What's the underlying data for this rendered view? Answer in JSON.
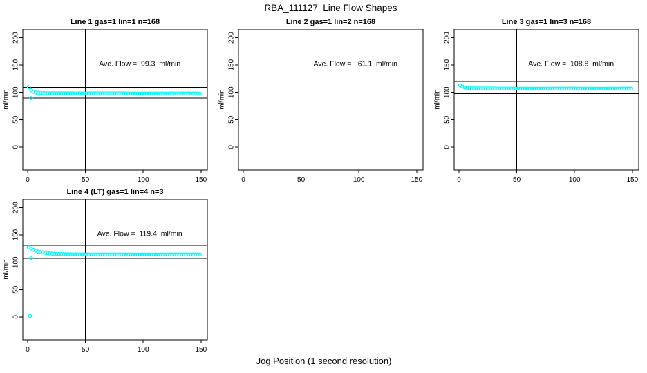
{
  "page": {
    "title": "RBA_111127  Line Flow Shapes",
    "xlabel": "Jog Position (1 second resolution)"
  },
  "chart_data": [
    {
      "type": "scatter",
      "title": "Line 1 gas=1 lin=1 n=168",
      "gas": 1,
      "lin": 1,
      "n": 168,
      "annotation": "Ave. Flow =  99.3  ml/min",
      "ave_flow": 99.3,
      "annotation_xy": [
        97,
        152
      ],
      "ylabel": "ml/min",
      "xlim": [
        -4.2,
        155.5
      ],
      "ylim": [
        -42,
        216
      ],
      "xticks": [
        0,
        50,
        100,
        150
      ],
      "yticks": [
        0,
        50,
        100,
        150,
        200
      ],
      "vline_x": 50,
      "hlines": [
        109.2,
        89.4
      ],
      "marker": "circle-open",
      "marker_color": "#00FFFF",
      "points": [
        [
          1,
          109.5
        ],
        [
          3,
          103.9
        ],
        [
          5,
          101.1
        ],
        [
          7,
          99.8
        ],
        [
          9,
          99.1
        ],
        [
          11,
          98.8
        ],
        [
          13,
          98.6
        ],
        [
          15,
          98.5
        ],
        [
          17,
          98.4
        ],
        [
          19,
          98.4
        ],
        [
          21,
          98.4
        ],
        [
          23,
          98.4
        ],
        [
          25,
          98.4
        ],
        [
          27,
          98.4
        ],
        [
          29,
          98.4
        ],
        [
          31,
          98.4
        ],
        [
          33,
          98.4
        ],
        [
          35,
          98.4
        ],
        [
          37,
          98.4
        ],
        [
          39,
          98.4
        ],
        [
          41,
          98.3
        ],
        [
          43,
          98.3
        ],
        [
          45,
          98.3
        ],
        [
          47,
          98.3
        ],
        [
          49,
          98.3
        ],
        [
          51,
          98.3
        ],
        [
          53,
          98.3
        ],
        [
          55,
          98.3
        ],
        [
          57,
          98.3
        ],
        [
          59,
          98.3
        ],
        [
          61,
          98.3
        ],
        [
          63,
          98.2
        ],
        [
          65,
          98.2
        ],
        [
          67,
          98.2
        ],
        [
          69,
          98.2
        ],
        [
          71,
          98.2
        ],
        [
          73,
          98.2
        ],
        [
          75,
          98.2
        ],
        [
          77,
          98.2
        ],
        [
          79,
          98.2
        ],
        [
          81,
          98.2
        ],
        [
          83,
          98.2
        ],
        [
          85,
          98.2
        ],
        [
          87,
          98.1
        ],
        [
          89,
          98.1
        ],
        [
          91,
          98.1
        ],
        [
          93,
          98.1
        ],
        [
          95,
          98.1
        ],
        [
          97,
          98.1
        ],
        [
          99,
          98.1
        ],
        [
          101,
          98.1
        ],
        [
          103,
          98.1
        ],
        [
          105,
          98.1
        ],
        [
          107,
          98.1
        ],
        [
          109,
          98.1
        ],
        [
          111,
          98.0
        ],
        [
          113,
          98.0
        ],
        [
          115,
          98.0
        ],
        [
          117,
          98.0
        ],
        [
          119,
          98.0
        ],
        [
          121,
          98.0
        ],
        [
          123,
          98.0
        ],
        [
          125,
          98.0
        ],
        [
          127,
          98.0
        ],
        [
          129,
          98.0
        ],
        [
          131,
          98.0
        ],
        [
          133,
          98.0
        ],
        [
          135,
          97.9
        ],
        [
          137,
          97.9
        ],
        [
          139,
          97.9
        ],
        [
          141,
          97.9
        ],
        [
          143,
          97.9
        ],
        [
          145,
          97.9
        ],
        [
          147,
          97.9
        ],
        [
          149,
          97.9
        ],
        [
          3,
          89.4
        ]
      ]
    },
    {
      "type": "scatter",
      "title": "Line 2 gas=1 lin=2 n=168",
      "gas": 1,
      "lin": 2,
      "n": 168,
      "annotation": "Ave. Flow =  -61.1  ml/min",
      "ave_flow": -61.1,
      "annotation_xy": [
        97,
        152
      ],
      "ylabel": "ml/min",
      "xlim": [
        -4.2,
        155.5
      ],
      "ylim": [
        -42,
        216
      ],
      "xticks": [
        0,
        50,
        100,
        150
      ],
      "yticks": [
        0,
        50,
        100,
        150,
        200
      ],
      "vline_x": 50,
      "hlines": [],
      "marker": "circle-open",
      "marker_color": "#00FFFF",
      "points": []
    },
    {
      "type": "scatter",
      "title": "Line 3 gas=1 lin=3 n=168",
      "gas": 1,
      "lin": 3,
      "n": 168,
      "annotation": "Ave. Flow =  108.8  ml/min",
      "ave_flow": 108.8,
      "annotation_xy": [
        97,
        152
      ],
      "ylabel": "ml/min",
      "xlim": [
        -4.2,
        155.5
      ],
      "ylim": [
        -42,
        216
      ],
      "xticks": [
        0,
        50,
        100,
        150
      ],
      "yticks": [
        0,
        50,
        100,
        150,
        200
      ],
      "vline_x": 50,
      "hlines": [
        119.7,
        97.9
      ],
      "marker": "circle-open",
      "marker_color": "#00FFFF",
      "points": [
        [
          1,
          113.2
        ],
        [
          3,
          110.4
        ],
        [
          5,
          108.9
        ],
        [
          7,
          108.1
        ],
        [
          9,
          107.7
        ],
        [
          11,
          107.4
        ],
        [
          13,
          107.3
        ],
        [
          15,
          107.2
        ],
        [
          17,
          107.2
        ],
        [
          19,
          107.1
        ],
        [
          21,
          107.1
        ],
        [
          23,
          107.1
        ],
        [
          25,
          107.1
        ],
        [
          27,
          107.1
        ],
        [
          29,
          107.1
        ],
        [
          31,
          107.0
        ],
        [
          33,
          107.0
        ],
        [
          35,
          107.0
        ],
        [
          37,
          107.0
        ],
        [
          39,
          107.0
        ],
        [
          41,
          107.0
        ],
        [
          43,
          107.0
        ],
        [
          45,
          107.0
        ],
        [
          47,
          107.0
        ],
        [
          49,
          107.0
        ],
        [
          51,
          106.9
        ],
        [
          53,
          106.9
        ],
        [
          55,
          106.9
        ],
        [
          57,
          106.9
        ],
        [
          59,
          106.9
        ],
        [
          61,
          106.9
        ],
        [
          63,
          106.9
        ],
        [
          65,
          106.9
        ],
        [
          67,
          106.9
        ],
        [
          69,
          106.9
        ],
        [
          71,
          106.9
        ],
        [
          73,
          106.9
        ],
        [
          75,
          106.9
        ],
        [
          77,
          106.9
        ],
        [
          79,
          106.9
        ],
        [
          81,
          106.9
        ],
        [
          83,
          106.9
        ],
        [
          85,
          106.9
        ],
        [
          87,
          106.9
        ],
        [
          89,
          106.9
        ],
        [
          91,
          106.9
        ],
        [
          93,
          106.9
        ],
        [
          95,
          106.9
        ],
        [
          97,
          106.9
        ],
        [
          99,
          106.9
        ],
        [
          101,
          106.8
        ],
        [
          103,
          106.8
        ],
        [
          105,
          106.8
        ],
        [
          107,
          106.8
        ],
        [
          109,
          106.8
        ],
        [
          111,
          106.8
        ],
        [
          113,
          106.8
        ],
        [
          115,
          106.8
        ],
        [
          117,
          106.8
        ],
        [
          119,
          106.8
        ],
        [
          121,
          106.8
        ],
        [
          123,
          106.8
        ],
        [
          125,
          106.8
        ],
        [
          127,
          106.8
        ],
        [
          129,
          106.8
        ],
        [
          131,
          106.8
        ],
        [
          133,
          106.8
        ],
        [
          135,
          106.8
        ],
        [
          137,
          106.8
        ],
        [
          139,
          106.8
        ],
        [
          141,
          106.8
        ],
        [
          143,
          106.7
        ],
        [
          145,
          106.7
        ],
        [
          147,
          106.7
        ],
        [
          149,
          106.7
        ]
      ]
    },
    {
      "type": "scatter",
      "title": "Line 4 (LT) gas=1 lin=4 n=3",
      "gas": 1,
      "lin": 4,
      "n": 3,
      "annotation": "Ave. Flow =  119.4  ml/min",
      "ave_flow": 119.4,
      "annotation_xy": [
        97,
        152
      ],
      "ylabel": "ml/min",
      "xlim": [
        -4.2,
        155.5
      ],
      "ylim": [
        -42,
        216
      ],
      "xticks": [
        0,
        50,
        100,
        150
      ],
      "yticks": [
        0,
        50,
        100,
        150,
        200
      ],
      "vline_x": 50,
      "hlines": [
        131.3,
        107.5
      ],
      "marker": "circle-open",
      "marker_color": "#00FFFF",
      "points": [
        [
          1,
          127.6
        ],
        [
          3,
          125.0
        ],
        [
          5,
          122.9
        ],
        [
          7,
          121.3
        ],
        [
          9,
          119.9
        ],
        [
          11,
          118.9
        ],
        [
          13,
          118.0
        ],
        [
          15,
          117.3
        ],
        [
          17,
          116.8
        ],
        [
          19,
          116.3
        ],
        [
          21,
          116.0
        ],
        [
          23,
          115.7
        ],
        [
          25,
          115.5
        ],
        [
          27,
          115.3
        ],
        [
          29,
          115.1
        ],
        [
          31,
          115.0
        ],
        [
          33,
          114.9
        ],
        [
          35,
          114.8
        ],
        [
          37,
          114.8
        ],
        [
          39,
          114.7
        ],
        [
          41,
          114.7
        ],
        [
          43,
          114.6
        ],
        [
          45,
          114.6
        ],
        [
          47,
          114.6
        ],
        [
          49,
          114.5
        ],
        [
          51,
          114.5
        ],
        [
          53,
          114.5
        ],
        [
          55,
          114.5
        ],
        [
          57,
          114.5
        ],
        [
          59,
          114.5
        ],
        [
          61,
          114.5
        ],
        [
          63,
          114.5
        ],
        [
          65,
          114.5
        ],
        [
          67,
          114.5
        ],
        [
          69,
          114.5
        ],
        [
          71,
          114.4
        ],
        [
          73,
          114.4
        ],
        [
          75,
          114.4
        ],
        [
          77,
          114.4
        ],
        [
          79,
          114.4
        ],
        [
          81,
          114.4
        ],
        [
          83,
          114.4
        ],
        [
          85,
          114.4
        ],
        [
          87,
          114.4
        ],
        [
          89,
          114.4
        ],
        [
          91,
          114.4
        ],
        [
          93,
          114.4
        ],
        [
          95,
          114.4
        ],
        [
          97,
          114.4
        ],
        [
          99,
          114.4
        ],
        [
          101,
          114.4
        ],
        [
          103,
          114.4
        ],
        [
          105,
          114.4
        ],
        [
          107,
          114.4
        ],
        [
          109,
          114.4
        ],
        [
          111,
          114.3
        ],
        [
          113,
          114.3
        ],
        [
          115,
          114.3
        ],
        [
          117,
          114.3
        ],
        [
          119,
          114.3
        ],
        [
          121,
          114.3
        ],
        [
          123,
          114.3
        ],
        [
          125,
          114.3
        ],
        [
          127,
          114.3
        ],
        [
          129,
          114.3
        ],
        [
          131,
          114.3
        ],
        [
          133,
          114.3
        ],
        [
          135,
          114.3
        ],
        [
          137,
          114.3
        ],
        [
          139,
          114.3
        ],
        [
          141,
          114.3
        ],
        [
          143,
          114.3
        ],
        [
          145,
          114.3
        ],
        [
          147,
          114.3
        ],
        [
          149,
          114.3
        ],
        [
          3,
          107.5
        ],
        [
          2,
          1.5
        ]
      ]
    }
  ]
}
